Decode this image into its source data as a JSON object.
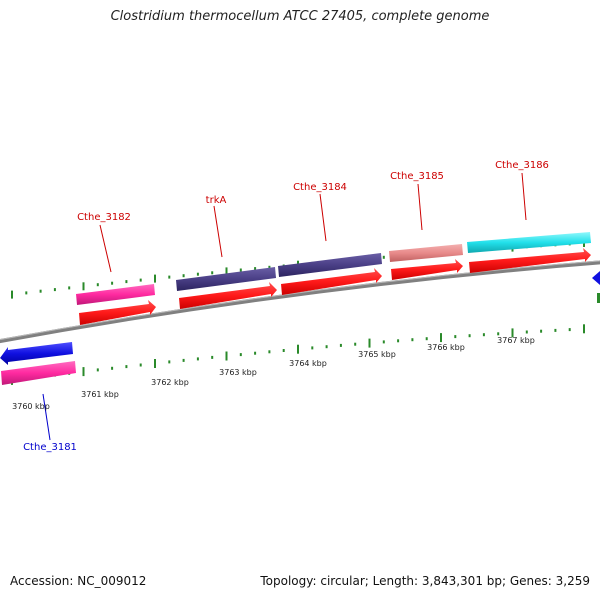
{
  "title": "Clostridium thermocellum ATCC 27405, complete genome",
  "footer": {
    "accession": "Accession: NC_009012",
    "summary": "Topology: circular; Length: 3,843,301 bp; Genes: 3,259"
  },
  "colors": {
    "backbone": "#808080",
    "tick": "#2a8a2a",
    "cds_forward": "#ff1a1a",
    "label_forward": "#cc0000",
    "label_reverse": "#0000cc",
    "magenta": "#ff2aa0",
    "purple": "#4a3f86",
    "pink": "#e88a8a",
    "cyan": "#22e0ea",
    "blue": "#1010e0"
  },
  "kbp_labels": [
    "3760 kbp",
    "3761 kbp",
    "3762 kbp",
    "3763 kbp",
    "3764 kbp",
    "3765 kbp",
    "3766 kbp",
    "3767 kbp"
  ],
  "gene_labels": {
    "cthe_3181": "Cthe_3181",
    "cthe_3182": "Cthe_3182",
    "trka": "trkA",
    "cthe_3184": "Cthe_3184",
    "cthe_3185": "Cthe_3185",
    "cthe_3186": "Cthe_3186"
  }
}
